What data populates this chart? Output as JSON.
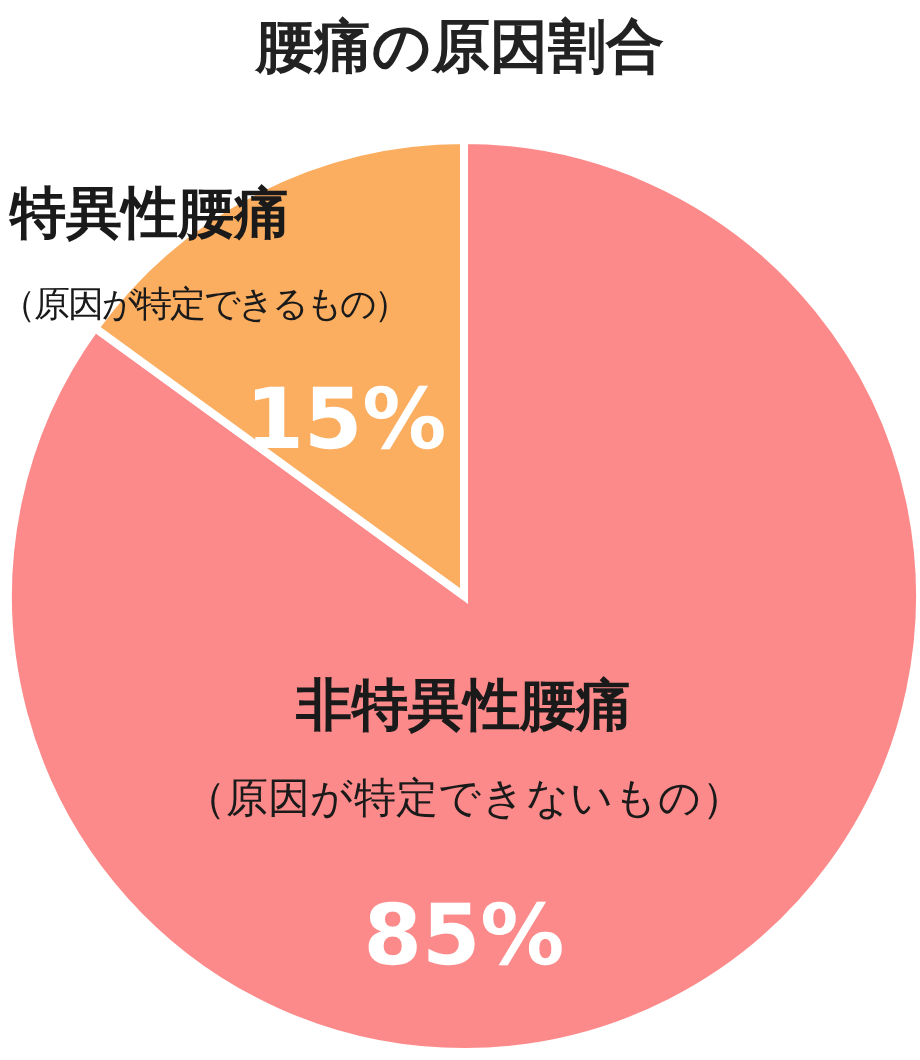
{
  "chart_data": {
    "type": "pie",
    "title": "腰痛の原因割合",
    "categories": [
      "非特異性腰痛",
      "特異性腰痛"
    ],
    "values": [
      85,
      15
    ],
    "colors": [
      "#fd8a8a",
      "#fbad60"
    ],
    "value_labels": [
      "85%",
      "15%"
    ],
    "annotations": [
      "（原因が特定できないもの）",
      "（原因が特定できるもの）"
    ]
  }
}
